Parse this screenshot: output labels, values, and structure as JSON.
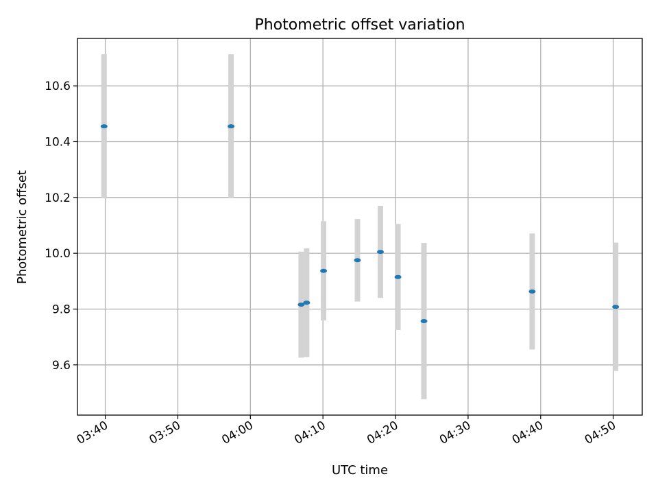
{
  "chart_data": {
    "type": "scatter",
    "title": "Photometric offset variation",
    "xlabel": "UTC time",
    "ylabel": "Photometric offset",
    "x_ticks": [
      "03:40",
      "03:50",
      "04:00",
      "04:10",
      "04:20",
      "04:30",
      "04:40",
      "04:50"
    ],
    "y_ticks": [
      "9.6",
      "9.8",
      "10.0",
      "10.2",
      "10.4",
      "10.6"
    ],
    "xlim": [
      "03:36:10",
      "04:54:00"
    ],
    "ylim": [
      9.42,
      10.77
    ],
    "grid": true,
    "colors": {
      "marker": "#1f77b4",
      "errorbar": "#d3d3d3",
      "grid": "#b0b0b0"
    },
    "series": [
      {
        "points": [
          {
            "x": "03:39:50",
            "y": 10.455,
            "err": 0.258
          },
          {
            "x": "03:57:20",
            "y": 10.455,
            "err": 0.258
          },
          {
            "x": "04:07:00",
            "y": 9.816,
            "err": 0.19
          },
          {
            "x": "04:07:45",
            "y": 9.823,
            "err": 0.195
          },
          {
            "x": "04:10:05",
            "y": 9.937,
            "err": 0.178
          },
          {
            "x": "04:14:45",
            "y": 9.975,
            "err": 0.148
          },
          {
            "x": "04:17:55",
            "y": 10.005,
            "err": 0.165
          },
          {
            "x": "04:20:20",
            "y": 9.915,
            "err": 0.19
          },
          {
            "x": "04:23:55",
            "y": 9.757,
            "err": 0.28
          },
          {
            "x": "04:38:50",
            "y": 9.863,
            "err": 0.208
          },
          {
            "x": "04:50:20",
            "y": 9.808,
            "err": 0.23
          }
        ]
      }
    ]
  }
}
